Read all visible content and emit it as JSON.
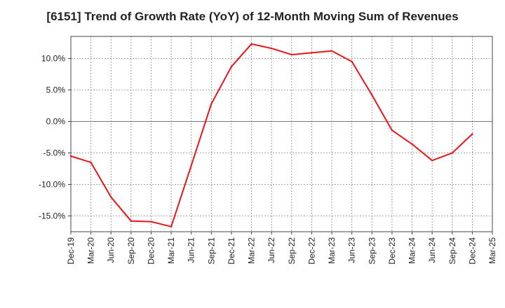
{
  "chart_data": {
    "type": "line",
    "title": "[6151]  Trend of Growth Rate (YoY) of 12-Month Moving Sum of Revenues",
    "xlabel": "",
    "ylabel": "",
    "categories": [
      "Dec-19",
      "Mar-20",
      "Jun-20",
      "Sep-20",
      "Dec-20",
      "Mar-21",
      "Jun-21",
      "Sep-21",
      "Dec-21",
      "Mar-22",
      "Jun-22",
      "Sep-22",
      "Dec-22",
      "Mar-23",
      "Jun-23",
      "Sep-23",
      "Dec-23",
      "Mar-24",
      "Jun-24",
      "Sep-24",
      "Dec-24",
      "Mar-25"
    ],
    "series": [
      {
        "values": [
          -5.5,
          -6.5,
          -12.0,
          -15.8,
          -15.9,
          -16.7,
          -7.0,
          2.8,
          8.7,
          12.3,
          11.6,
          10.6,
          10.9,
          11.2,
          9.5,
          4.2,
          -1.4,
          -3.6,
          -6.2,
          -5.0,
          -2.0,
          null
        ],
        "color": "#e8151b"
      }
    ],
    "ylim": [
      -17.5,
      13.5
    ],
    "yticks": [
      -15,
      -10,
      -5,
      0,
      5,
      10
    ],
    "ytick_labels": [
      "-15.0%",
      "-10.0%",
      "-5.0%",
      "0.0%",
      "5.0%",
      "10.0%"
    ],
    "grid": true,
    "grid_style": "dotted",
    "zero_line": true,
    "legend": "none"
  }
}
